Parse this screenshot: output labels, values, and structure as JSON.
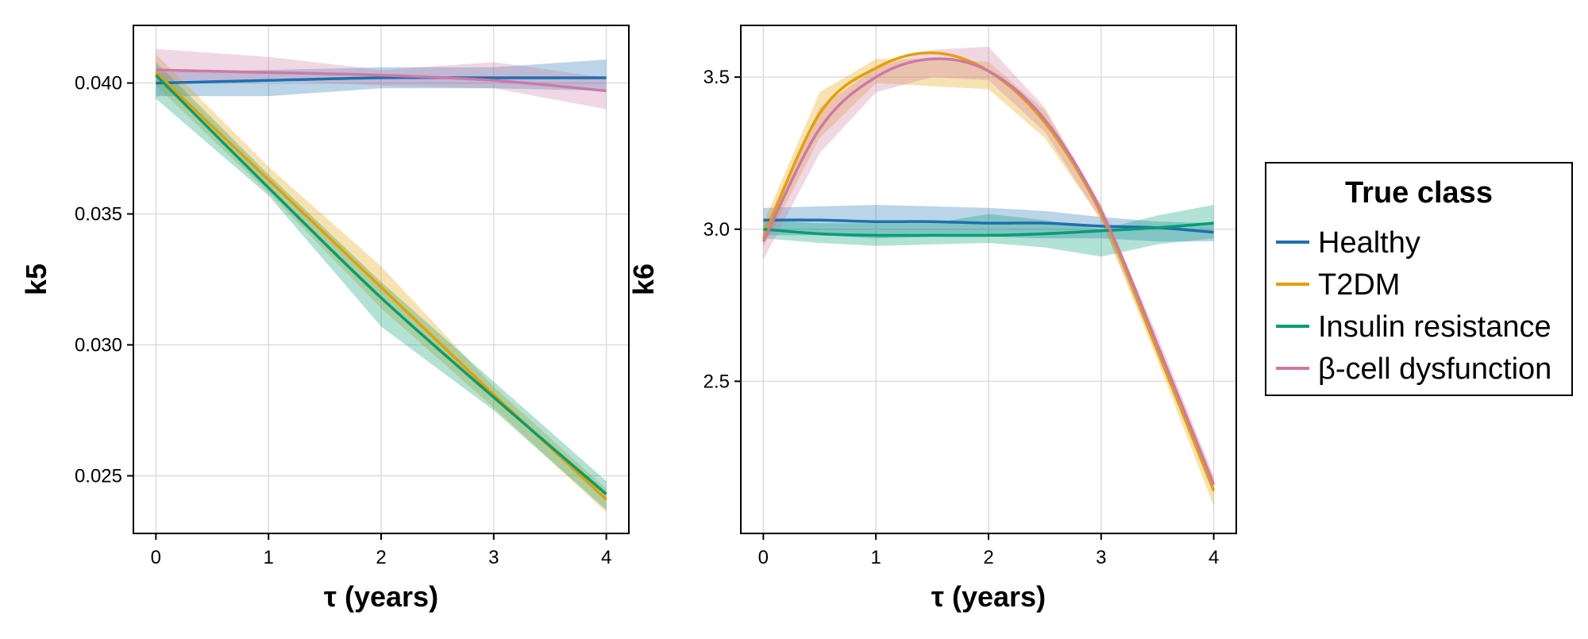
{
  "legend": {
    "title": "True class",
    "entries": [
      {
        "label": "Healthy",
        "color": "#1f6fae"
      },
      {
        "label": "T2DM",
        "color": "#e69f00"
      },
      {
        "label": "Insulin resistance",
        "color": "#009e73"
      },
      {
        "label": "β-cell dysfunction",
        "color": "#cc79a7"
      }
    ]
  },
  "chart_data": [
    {
      "type": "line",
      "xlabel": "τ (years)",
      "ylabel": "k5",
      "xlim": [
        -0.2,
        4.2
      ],
      "ylim": [
        0.0228,
        0.0422
      ],
      "xticks": [
        0,
        1,
        2,
        3,
        4
      ],
      "xtick_labels": [
        "0",
        "1",
        "2",
        "3",
        "4"
      ],
      "yticks": [
        0.025,
        0.03,
        0.035,
        0.04
      ],
      "ytick_labels": [
        "0.025",
        "0.030",
        "0.035",
        "0.040"
      ],
      "grid": true,
      "band_opacity": 0.3,
      "x": [
        0,
        1,
        2,
        3,
        4
      ],
      "series": [
        {
          "name": "Healthy",
          "color": "#1f6fae",
          "values": [
            0.04,
            0.0401,
            0.0402,
            0.0402,
            0.0402
          ],
          "lower": [
            0.0395,
            0.0395,
            0.0398,
            0.0398,
            0.0397
          ],
          "upper": [
            0.0404,
            0.0405,
            0.0406,
            0.0406,
            0.0409
          ]
        },
        {
          "name": "T2DM",
          "color": "#e69f00",
          "values": [
            0.0404,
            0.0363,
            0.0322,
            0.0281,
            0.0241
          ],
          "lower": [
            0.0399,
            0.0358,
            0.0314,
            0.0276,
            0.0236
          ],
          "upper": [
            0.0411,
            0.0368,
            0.033,
            0.0284,
            0.0245
          ]
        },
        {
          "name": "Insulin resistance",
          "color": "#009e73",
          "values": [
            0.0403,
            0.036,
            0.0318,
            0.028,
            0.0243
          ],
          "lower": [
            0.0394,
            0.0357,
            0.0307,
            0.0275,
            0.0237
          ],
          "upper": [
            0.0408,
            0.0365,
            0.0324,
            0.0286,
            0.0248
          ]
        },
        {
          "name": "β-cell dysfunction",
          "color": "#cc79a7",
          "values": [
            0.0405,
            0.0404,
            0.0403,
            0.0401,
            0.0397
          ],
          "lower": [
            0.0401,
            0.0401,
            0.0399,
            0.0398,
            0.039
          ],
          "upper": [
            0.0413,
            0.041,
            0.0405,
            0.0408,
            0.0402
          ]
        }
      ]
    },
    {
      "type": "line",
      "xlabel": "τ (years)",
      "ylabel": "k6",
      "xlim": [
        -0.2,
        4.2
      ],
      "ylim": [
        2.0,
        3.67
      ],
      "xticks": [
        0,
        1,
        2,
        3,
        4
      ],
      "xtick_labels": [
        "0",
        "1",
        "2",
        "3",
        "4"
      ],
      "yticks": [
        2.5,
        3.0,
        3.5
      ],
      "ytick_labels": [
        "2.5",
        "3.0",
        "3.5"
      ],
      "grid": true,
      "band_opacity": 0.3,
      "x": [
        0,
        0.5,
        1,
        1.5,
        2,
        2.5,
        3,
        3.5,
        4
      ],
      "series": [
        {
          "name": "Healthy",
          "color": "#1f6fae",
          "values": [
            3.03,
            3.03,
            3.025,
            3.025,
            3.02,
            3.02,
            3.01,
            3.005,
            2.99
          ],
          "lower": [
            2.98,
            2.98,
            2.97,
            2.975,
            2.975,
            2.97,
            2.97,
            2.96,
            2.96
          ],
          "upper": [
            3.07,
            3.075,
            3.08,
            3.075,
            3.07,
            3.06,
            3.04,
            3.025,
            3.02
          ]
        },
        {
          "name": "T2DM",
          "color": "#e69f00",
          "values": [
            2.97,
            3.38,
            3.53,
            3.58,
            3.52,
            3.35,
            3.05,
            2.6,
            2.14
          ],
          "lower": [
            2.94,
            3.3,
            3.48,
            3.47,
            3.46,
            3.3,
            3.03,
            2.57,
            2.09
          ],
          "upper": [
            3.02,
            3.45,
            3.56,
            3.56,
            3.55,
            3.39,
            3.08,
            2.63,
            2.18
          ]
        },
        {
          "name": "Insulin resistance",
          "color": "#009e73",
          "values": [
            3.0,
            2.985,
            2.98,
            2.98,
            2.98,
            2.985,
            2.995,
            3.005,
            3.02
          ],
          "lower": [
            2.97,
            2.955,
            2.945,
            2.95,
            2.955,
            2.94,
            2.91,
            2.95,
            2.97
          ],
          "upper": [
            3.03,
            3.02,
            3.02,
            3.02,
            3.05,
            3.03,
            3.0,
            3.045,
            3.08
          ]
        },
        {
          "name": "β-cell dysfunction",
          "color": "#cc79a7",
          "values": [
            2.96,
            3.33,
            3.5,
            3.56,
            3.52,
            3.36,
            3.06,
            2.62,
            2.16
          ],
          "lower": [
            2.9,
            3.25,
            3.45,
            3.5,
            3.49,
            3.32,
            3.03,
            2.59,
            2.13
          ],
          "upper": [
            3.0,
            3.4,
            3.53,
            3.59,
            3.6,
            3.4,
            3.08,
            2.65,
            2.19
          ]
        }
      ]
    }
  ]
}
